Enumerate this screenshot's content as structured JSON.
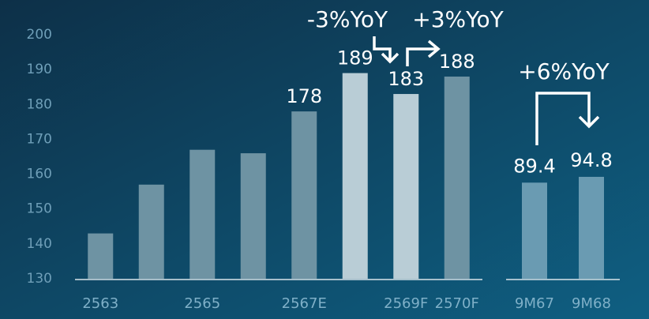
{
  "chart_data": [
    {
      "type": "bar",
      "categories": [
        "2563",
        null,
        "2565",
        null,
        "2567E",
        null,
        "2569F",
        "2570F"
      ],
      "values": [
        143,
        157,
        167,
        166,
        178,
        189,
        183,
        188
      ],
      "value_labels": [
        null,
        null,
        null,
        null,
        "178",
        "189",
        "183",
        "188"
      ],
      "colors": [
        "#6e93a3",
        "#6e93a3",
        "#6e93a3",
        "#6e93a3",
        "#6e93a3",
        "#b9cdd6",
        "#b9cdd6",
        "#6e93a3"
      ],
      "ylim": [
        130,
        200
      ],
      "yticks": [
        130,
        140,
        150,
        160,
        170,
        180,
        190,
        200
      ],
      "annotations": [
        "-3%YoY",
        "+3%YoY"
      ]
    },
    {
      "type": "bar",
      "categories": [
        "9M67",
        "9M68"
      ],
      "values": [
        89.4,
        94.8
      ],
      "colors": [
        "#6a9bb2",
        "#6a9bb2"
      ],
      "ylim": [
        0,
        227
      ],
      "annotations": [
        "+6%YoY"
      ]
    }
  ]
}
